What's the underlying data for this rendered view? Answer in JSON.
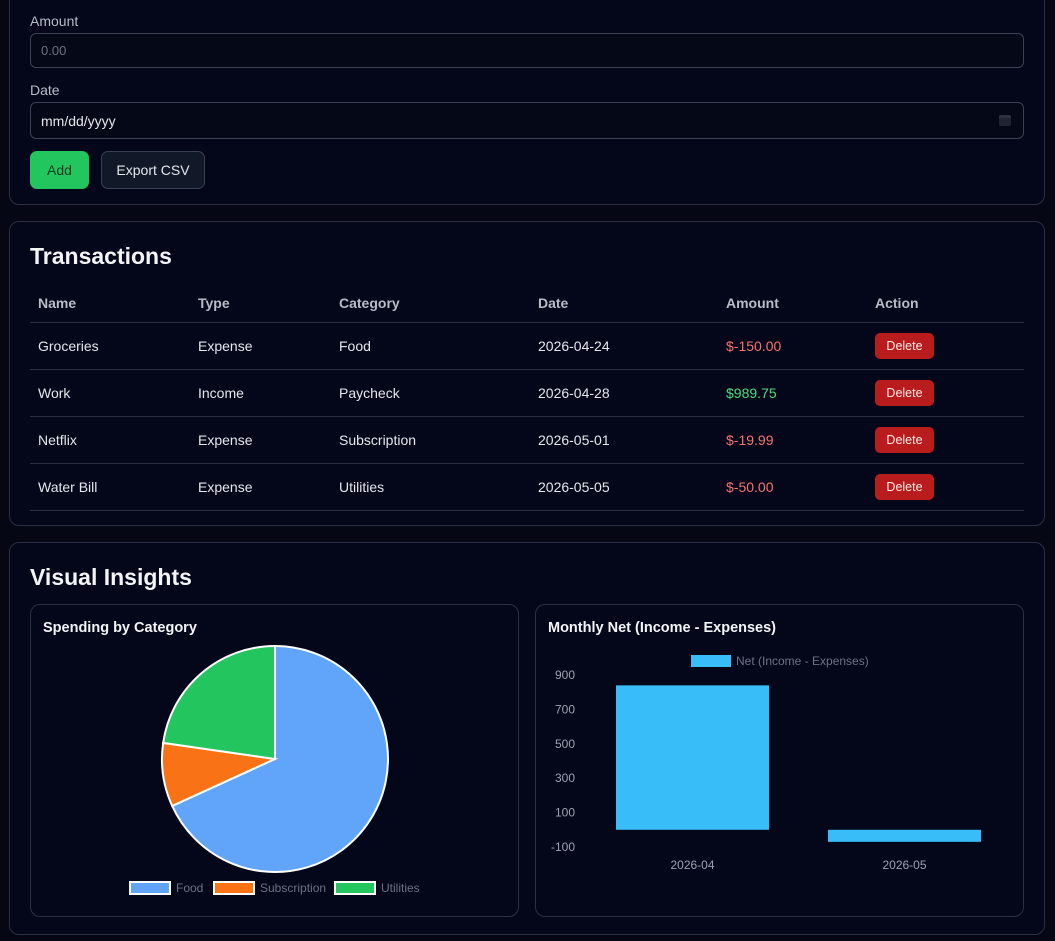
{
  "form": {
    "amount_label": "Amount",
    "amount_placeholder": "0.00",
    "date_label": "Date",
    "date_placeholder": "mm/dd/yyyy",
    "add_label": "Add",
    "export_label": "Export CSV"
  },
  "transactions": {
    "title": "Transactions",
    "headers": [
      "Name",
      "Type",
      "Category",
      "Date",
      "Amount",
      "Action"
    ],
    "rows": [
      {
        "name": "Groceries",
        "type": "Expense",
        "category": "Food",
        "date": "2026-04-24",
        "amount": "$-150.00",
        "sign": "neg",
        "action": "Delete"
      },
      {
        "name": "Work",
        "type": "Income",
        "category": "Paycheck",
        "date": "2026-04-28",
        "amount": "$989.75",
        "sign": "pos",
        "action": "Delete"
      },
      {
        "name": "Netflix",
        "type": "Expense",
        "category": "Subscription",
        "date": "2026-05-01",
        "amount": "$-19.99",
        "sign": "neg",
        "action": "Delete"
      },
      {
        "name": "Water Bill",
        "type": "Expense",
        "category": "Utilities",
        "date": "2026-05-05",
        "amount": "$-50.00",
        "sign": "neg",
        "action": "Delete"
      }
    ]
  },
  "insights": {
    "title": "Visual Insights"
  },
  "colors": {
    "food": "#60a5fa",
    "subscription": "#f97316",
    "utilities": "#22c55e",
    "net": "#38bdf8",
    "expense": "#f87171",
    "income": "#4ade80",
    "delete": "#b91c1c",
    "add": "#22c55e"
  },
  "chart_data": [
    {
      "type": "pie",
      "title": "Spending by Category",
      "categories": [
        "Food",
        "Subscription",
        "Utilities"
      ],
      "values": [
        150.0,
        19.99,
        50.0
      ],
      "legend_position": "bottom"
    },
    {
      "type": "bar",
      "title": "Monthly Net (Income - Expenses)",
      "categories": [
        "2026-04",
        "2026-05"
      ],
      "series": [
        {
          "name": "Net (Income - Expenses)",
          "values": [
            839.75,
            -69.99
          ]
        }
      ],
      "yticks": [
        900,
        700,
        500,
        300,
        100,
        -100
      ],
      "ylim": [
        -100,
        900
      ],
      "legend_position": "top"
    }
  ]
}
